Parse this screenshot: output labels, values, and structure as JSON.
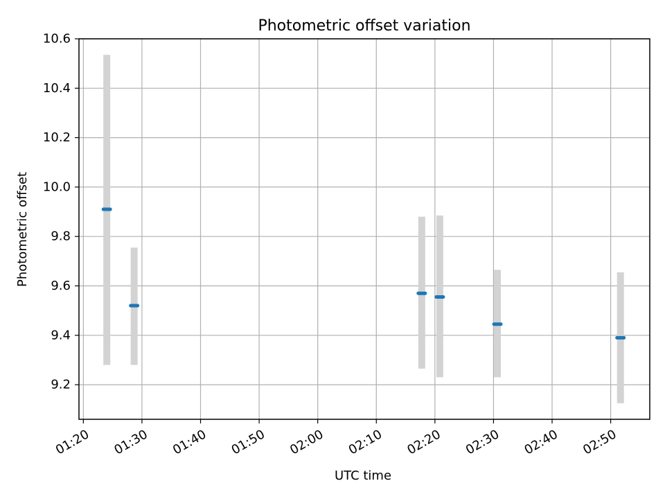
{
  "chart_data": {
    "type": "scatter",
    "title": "Photometric offset variation",
    "xlabel": "UTC time",
    "ylabel": "Photometric offset",
    "xlim": [
      "01:19:15",
      "02:56:40"
    ],
    "ylim": [
      9.06,
      10.6
    ],
    "xticks": [
      "01:20",
      "01:30",
      "01:40",
      "01:50",
      "02:00",
      "02:10",
      "02:20",
      "02:30",
      "02:40",
      "02:50"
    ],
    "yticks": [
      "9.2",
      "9.4",
      "9.6",
      "9.8",
      "10.0",
      "10.2",
      "10.4",
      "10.6"
    ],
    "grid": true,
    "legend": "none",
    "colors": {
      "marker": "#1f77b4",
      "errorbar": "#d3d3d3",
      "grid": "#b0b0b0"
    },
    "series": [
      {
        "points": [
          {
            "time": "01:24:00",
            "y": 9.91,
            "ylow": 9.28,
            "yhigh": 10.535
          },
          {
            "time": "01:28:40",
            "y": 9.52,
            "ylow": 9.28,
            "yhigh": 9.755
          },
          {
            "time": "02:17:45",
            "y": 9.57,
            "ylow": 9.265,
            "yhigh": 9.88
          },
          {
            "time": "02:20:50",
            "y": 9.555,
            "ylow": 9.23,
            "yhigh": 9.885
          },
          {
            "time": "02:30:40",
            "y": 9.445,
            "ylow": 9.23,
            "yhigh": 9.665
          },
          {
            "time": "02:51:40",
            "y": 9.39,
            "ylow": 9.125,
            "yhigh": 9.655
          }
        ]
      }
    ]
  }
}
